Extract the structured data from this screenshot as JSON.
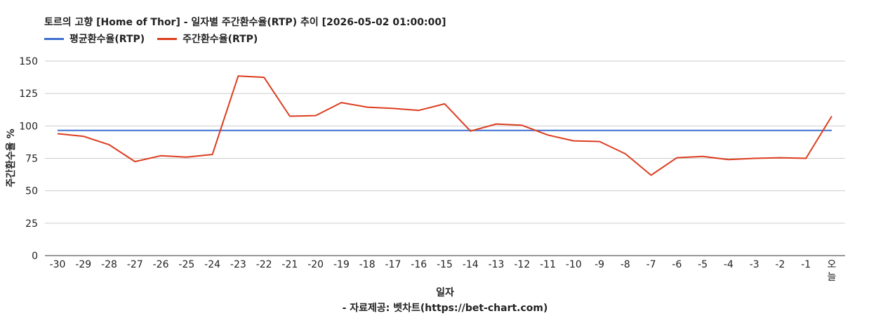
{
  "chart_data": {
    "type": "line",
    "title": "토르의 고향 [Home of Thor] - 일자별 주간환수율(RTP) 추이 [2026-05-02 01:00:00]",
    "xlabel": "일자",
    "ylabel": "주간환수율 %",
    "source": "- 자료제공: 벳차트(https://bet-chart.com)",
    "ylim": [
      0,
      150
    ],
    "yticks": [
      "0",
      "25",
      "50",
      "75",
      "100",
      "125",
      "150"
    ],
    "categories": [
      "-30",
      "-29",
      "-28",
      "-27",
      "-26",
      "-25",
      "-24",
      "-23",
      "-22",
      "-21",
      "-20",
      "-19",
      "-18",
      "-17",
      "-16",
      "-15",
      "-14",
      "-13",
      "-12",
      "-11",
      "-10",
      "-9",
      "-8",
      "-7",
      "-6",
      "-5",
      "-4",
      "-3",
      "-2",
      "-1",
      "오늘"
    ],
    "grid": true,
    "legend": "top-left",
    "series": [
      {
        "name": "평균환수율(RTP)",
        "color": "#3f6fd1",
        "values": [
          96.5,
          96.5,
          96.5,
          96.5,
          96.5,
          96.5,
          96.5,
          96.5,
          96.5,
          96.5,
          96.5,
          96.5,
          96.5,
          96.5,
          96.5,
          96.5,
          96.5,
          96.5,
          96.5,
          96.5,
          96.5,
          96.5,
          96.5,
          96.5,
          96.5,
          96.5,
          96.5,
          96.5,
          96.5,
          96.5,
          96.5
        ]
      },
      {
        "name": "주간환수율(RTP)",
        "color": "#dc3d1f",
        "values": [
          94.0,
          92.0,
          85.5,
          72.5,
          77.0,
          76.0,
          78.0,
          138.5,
          137.5,
          107.5,
          108.0,
          118.0,
          114.5,
          113.5,
          112.0,
          117.0,
          96.0,
          101.5,
          100.5,
          93.0,
          88.5,
          88.0,
          78.5,
          62.0,
          75.5,
          76.5,
          74.0,
          75.0,
          75.5,
          75.0,
          107.5
        ]
      }
    ]
  }
}
